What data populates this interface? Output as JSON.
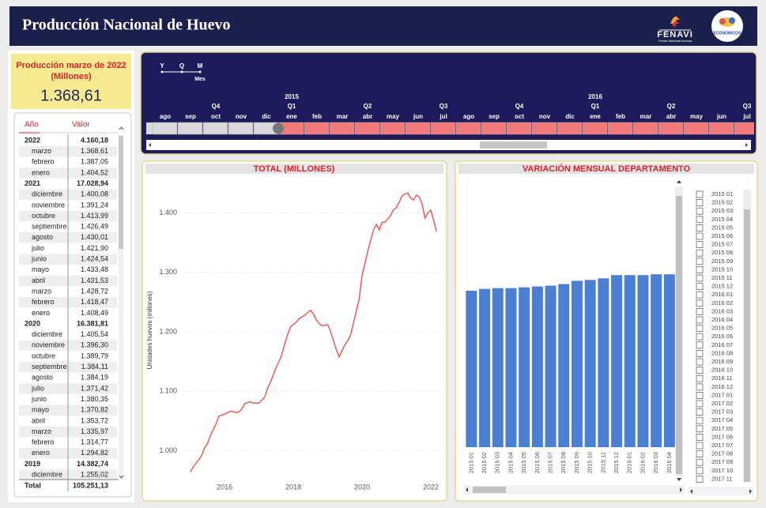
{
  "header": {
    "title": "Producción Nacional de Huevo",
    "logo_text": "FENAVI",
    "logo_subtext": "Fondo Nacional Avícola",
    "logo2_text": "ECONÓMICOS"
  },
  "kpi": {
    "label": "Producción marzo de 2022 (Millones)",
    "value": "1.368,61"
  },
  "table": {
    "columns": [
      "Año",
      "Valor"
    ],
    "rows": [
      [
        "2022",
        "4.160,18"
      ],
      [
        "marzo",
        "1.368,61"
      ],
      [
        "febrero",
        "1.387,05"
      ],
      [
        "enero",
        "1.404,52"
      ],
      [
        "2021",
        "17.028,94"
      ],
      [
        "diciembre",
        "1.400,08"
      ],
      [
        "noviembre",
        "1.391,24"
      ],
      [
        "octubre",
        "1.413,99"
      ],
      [
        "septiembre",
        "1.426,49"
      ],
      [
        "agosto",
        "1.430,01"
      ],
      [
        "julio",
        "1.421,90"
      ],
      [
        "junio",
        "1.424,54"
      ],
      [
        "mayo",
        "1.433,48"
      ],
      [
        "abril",
        "1.431,53"
      ],
      [
        "marzo",
        "1.428,72"
      ],
      [
        "febrero",
        "1.418,47"
      ],
      [
        "enero",
        "1.408,49"
      ],
      [
        "2020",
        "16.381,81"
      ],
      [
        "diciembre",
        "1.405,54"
      ],
      [
        "noviembre",
        "1.396,30"
      ],
      [
        "octubre",
        "1.389,79"
      ],
      [
        "septiembre",
        "1.384,11"
      ],
      [
        "agosto",
        "1.384,19"
      ],
      [
        "julio",
        "1.371,42"
      ],
      [
        "junio",
        "1.380,35"
      ],
      [
        "mayo",
        "1.370,82"
      ],
      [
        "abril",
        "1.353,72"
      ],
      [
        "marzo",
        "1.335,97"
      ],
      [
        "febrero",
        "1.314,77"
      ],
      [
        "enero",
        "1.294,82"
      ],
      [
        "2019",
        "14.382,74"
      ],
      [
        "diciembre",
        "1.255,02"
      ]
    ],
    "total": [
      "Total",
      "105.251,13"
    ]
  },
  "timeline": {
    "levels": [
      "Y",
      "Q",
      "M"
    ],
    "level_label": "Mes",
    "years": [
      "2015",
      "2016"
    ],
    "quarters": [
      "Q4",
      "Q1",
      "Q2",
      "Q3",
      "Q4",
      "Q1",
      "Q2",
      "Q3"
    ],
    "months": [
      "ago",
      "sep",
      "oct",
      "nov",
      "dic",
      "ene",
      "feb",
      "mar",
      "abr",
      "may",
      "jun",
      "jul",
      "ago",
      "sep",
      "oct",
      "nov",
      "dic",
      "ene",
      "feb",
      "mar",
      "abr",
      "may",
      "jun",
      "jul"
    ]
  },
  "chart_data": [
    {
      "type": "line",
      "title": "TOTAL (MILLONES)",
      "y_label": "Unidades huevos (millones)",
      "color": "#f05a5a",
      "grid": true,
      "x": [
        "2015-01",
        "2015-02",
        "2015-03",
        "2015-04",
        "2015-05",
        "2015-06",
        "2015-07",
        "2015-08",
        "2015-09",
        "2015-10",
        "2015-11",
        "2015-12",
        "2016-01",
        "2016-02",
        "2016-03",
        "2016-04",
        "2016-05",
        "2016-06",
        "2016-07",
        "2016-08",
        "2016-09",
        "2016-10",
        "2016-11",
        "2016-12",
        "2017-01",
        "2017-02",
        "2017-03",
        "2017-04",
        "2017-05",
        "2017-06",
        "2017-07",
        "2017-08",
        "2017-09",
        "2017-10",
        "2017-11",
        "2017-12",
        "2018-01",
        "2018-02",
        "2018-03",
        "2018-04",
        "2018-05",
        "2018-06",
        "2018-07",
        "2018-08",
        "2018-09",
        "2018-10",
        "2018-11",
        "2018-12",
        "2019-01",
        "2019-02",
        "2019-03",
        "2019-04",
        "2019-05",
        "2019-06",
        "2019-07",
        "2019-08",
        "2019-09",
        "2019-10",
        "2019-11",
        "2019-12",
        "2020-01",
        "2020-02",
        "2020-03",
        "2020-04",
        "2020-05",
        "2020-06",
        "2020-07",
        "2020-08",
        "2020-09",
        "2020-10",
        "2020-11",
        "2020-12",
        "2021-01",
        "2021-02",
        "2021-03",
        "2021-04",
        "2021-05",
        "2021-06",
        "2021-07",
        "2021-08",
        "2021-09",
        "2021-10",
        "2021-11",
        "2021-12",
        "2022-01",
        "2022-02",
        "2022-03"
      ],
      "values": [
        964,
        972,
        979,
        985,
        992,
        1005,
        1012,
        1025,
        1035,
        1045,
        1058,
        1060,
        1061,
        1064,
        1066,
        1066,
        1064,
        1065,
        1070,
        1079,
        1081,
        1082,
        1080,
        1080,
        1080,
        1085,
        1090,
        1105,
        1115,
        1128,
        1140,
        1150,
        1162,
        1180,
        1195,
        1208,
        1212,
        1216,
        1222,
        1225,
        1228,
        1232,
        1236,
        1230,
        1220,
        1214,
        1210,
        1211,
        1212,
        1200,
        1185,
        1170,
        1158,
        1168,
        1178,
        1185,
        1195,
        1215,
        1235,
        1255.02,
        1294.82,
        1314.77,
        1335.97,
        1353.72,
        1370.82,
        1380.35,
        1371.42,
        1384.19,
        1384.11,
        1389.79,
        1396.3,
        1405.54,
        1408.49,
        1418.47,
        1428.72,
        1431.53,
        1433.48,
        1424.54,
        1421.9,
        1430.01,
        1426.49,
        1413.99,
        1391.24,
        1400.08,
        1404.52,
        1387.05,
        1368.61
      ],
      "xlim": [
        2014.8,
        2022.3
      ],
      "xticks": [
        2016,
        2018,
        2020,
        2022
      ],
      "ylim": [
        950,
        1455
      ],
      "yticks": [
        {
          "value": 1000,
          "label": "1.000"
        },
        {
          "value": 1100,
          "label": "1.100"
        },
        {
          "value": 1200,
          "label": "1.200"
        },
        {
          "value": 1300,
          "label": "1.300"
        },
        {
          "value": 1400,
          "label": "1.400"
        }
      ]
    },
    {
      "type": "bar",
      "title": "VARIACIÓN MENSUAL DEPARTAMENTO",
      "color": "#4a7fd4",
      "categories": [
        "2015 01",
        "2015 02",
        "2015 03",
        "2015 04",
        "2015 05",
        "2015 06",
        "2015 07",
        "2015 08",
        "2015 09",
        "2015 10",
        "2015 11",
        "2015 12",
        "2016 01",
        "2016 02",
        "2016 03",
        "2016 04"
      ],
      "values": [
        964,
        975,
        980,
        980,
        985,
        990,
        995,
        1005,
        1025,
        1030,
        1040,
        1060,
        1060,
        1060,
        1065,
        1065
      ],
      "ylim": [
        0,
        1655
      ]
    }
  ],
  "slicer": {
    "items": [
      "2015 01",
      "2015 02",
      "2015 03",
      "2015 04",
      "2015 05",
      "2015 06",
      "2015 07",
      "2015 08",
      "2015 09",
      "2015 10",
      "2015 11",
      "2015 12",
      "2016 01",
      "2016 02",
      "2016 03",
      "2016 04",
      "2016 05",
      "2016 06",
      "2016 07",
      "2016 08",
      "2016 09",
      "2016 10",
      "2016 11",
      "2016 12",
      "2017 01",
      "2017 02",
      "2017 03",
      "2017 04",
      "2017 05",
      "2017 06",
      "2017 07",
      "2017 08",
      "2017 09",
      "2017 10",
      "2017 11"
    ]
  }
}
